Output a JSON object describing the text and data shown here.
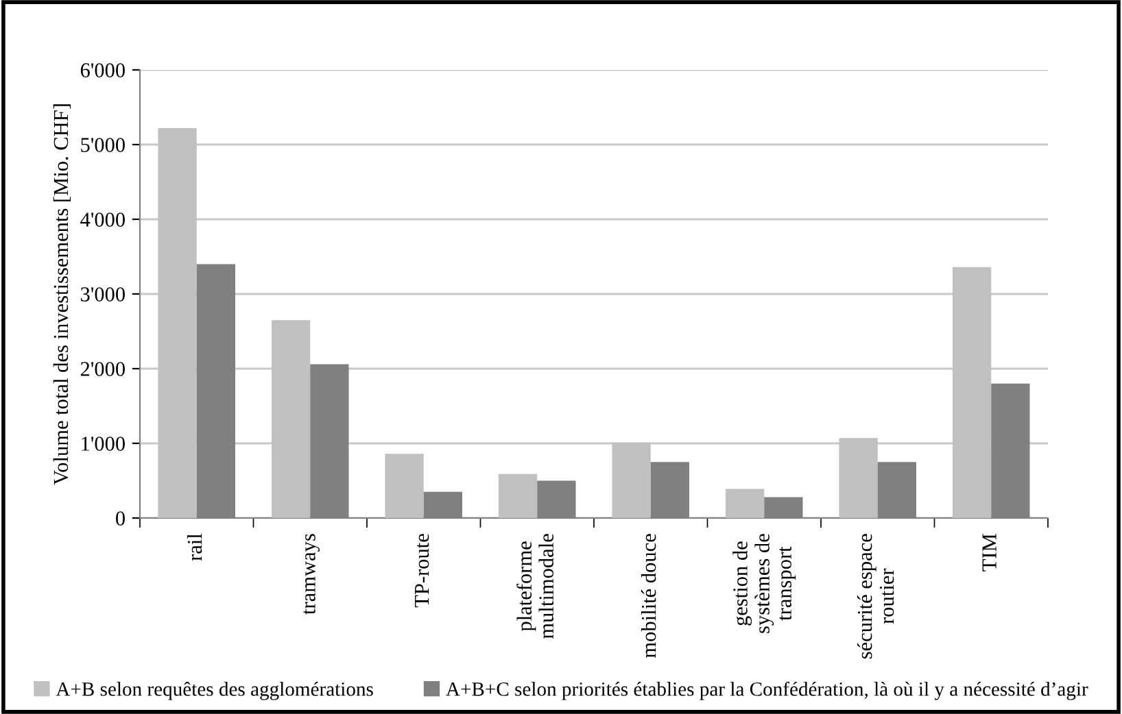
{
  "chart_data": {
    "type": "bar",
    "ylabel": "Volume total des investissements [Mio. CHF]",
    "categories": [
      "rail",
      "tramways",
      "TP-route",
      "plateforme\nmultimodale",
      "mobilité douce",
      "gestion de\nsystèmes de\ntransport",
      "sécurité espace\nroutier",
      "TIM"
    ],
    "series": [
      {
        "name": "A+B selon requêtes des agglomérations",
        "color": "#c0c0c0",
        "values": [
          5220,
          2650,
          860,
          590,
          1010,
          390,
          1070,
          3360
        ]
      },
      {
        "name": "A+B+C selon priorités établies par la Confédération, là où il y a nécessité d’agir",
        "color": "#808080",
        "values": [
          3400,
          2060,
          350,
          500,
          750,
          280,
          750,
          1800
        ]
      }
    ],
    "ylim": [
      0,
      6000
    ],
    "yticks": [
      {
        "value": 0,
        "label": "0"
      },
      {
        "value": 1000,
        "label": "1'000"
      },
      {
        "value": 2000,
        "label": "2'000"
      },
      {
        "value": 3000,
        "label": "3'000"
      },
      {
        "value": 4000,
        "label": "4'000"
      },
      {
        "value": 5000,
        "label": "5'000"
      },
      {
        "value": 6000,
        "label": "6'000"
      }
    ],
    "grid": "y",
    "legend": "bottom"
  }
}
